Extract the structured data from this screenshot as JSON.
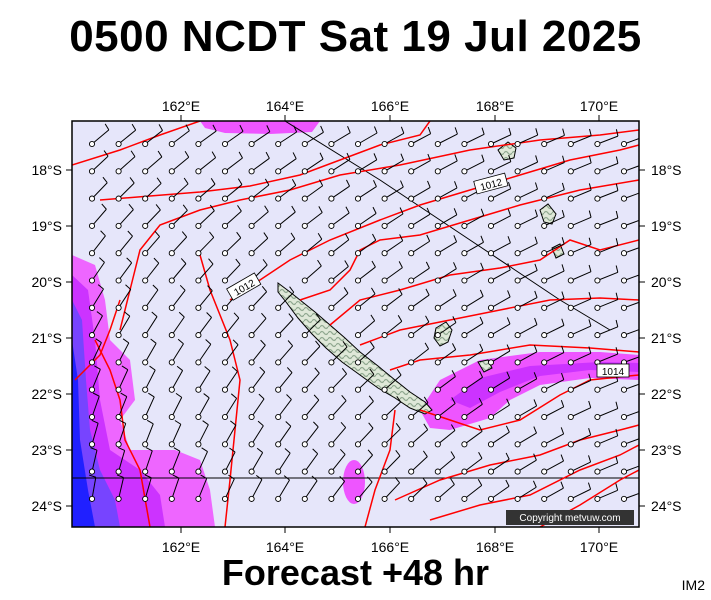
{
  "title": "0500 NCDT Sat 19 Jul 2025",
  "footer": "Forecast +48 hr",
  "code": "IM2",
  "copyright": "Copyright metvuw.com",
  "axes": {
    "lon_ticks": [
      "162°E",
      "164°E",
      "166°E",
      "168°E",
      "170°E"
    ],
    "lat_ticks": [
      "18°S",
      "19°S",
      "20°S",
      "21°S",
      "22°S",
      "23°S",
      "24°S"
    ]
  },
  "isobar_labels": [
    "1012",
    "1012",
    "1014"
  ],
  "colors": {
    "background": "#e6e6fa",
    "isobar": "#ff0000",
    "wind_light": "#e040ff",
    "wind_medium": "#ff00ff",
    "wind_strong": "#3030ff",
    "land": "#c8d8c0"
  }
}
